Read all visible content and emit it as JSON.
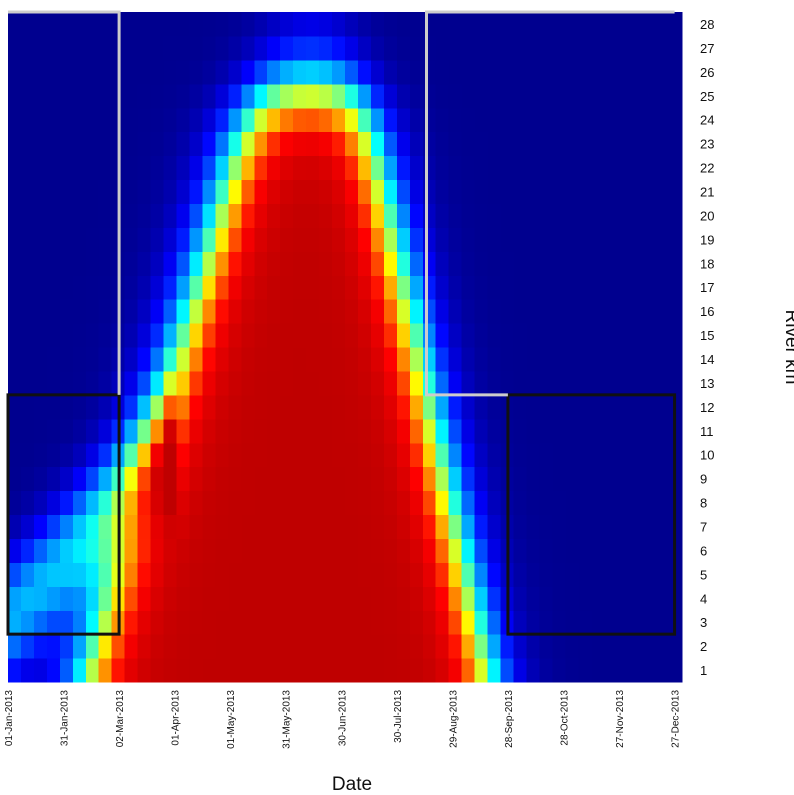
{
  "chart_data": {
    "type": "heatmap",
    "title": "",
    "xlabel": "Date",
    "ylabel": "River km",
    "x_ticks": [
      "01-Jan-2013",
      "31-Jan-2013",
      "02-Mar-2013",
      "01-Apr-2013",
      "01-May-2013",
      "31-May-2013",
      "30-Jun-2013",
      "30-Jul-2013",
      "29-Aug-2013",
      "28-Sep-2013",
      "28-Oct-2013",
      "27-Nov-2013",
      "27-Dec-2013"
    ],
    "y_ticks": [
      "1",
      "2",
      "3",
      "4",
      "5",
      "6",
      "7",
      "8",
      "9",
      "10",
      "11",
      "12",
      "13",
      "14",
      "15",
      "16",
      "17",
      "18",
      "19",
      "20",
      "21",
      "22",
      "23",
      "24",
      "25",
      "26",
      "27",
      "28"
    ],
    "x_range": [
      "01-Jan-2013",
      "31-Dec-2013"
    ],
    "y_range": [
      0.5,
      28.5
    ],
    "colormap": "jet",
    "colormap_colors": [
      "#00008f",
      "#0000ff",
      "#00ffff",
      "#ffff00",
      "#ff0000",
      "#bf0000"
    ],
    "color_scale": "relative 0-1 (no colorbar shown)",
    "legend": "none",
    "grid": false,
    "annotations": [
      {
        "type": "rectangle",
        "color": "#111111",
        "x": [
          "01-Jan-2013",
          "02-Mar-2013"
        ],
        "y": [
          2.5,
          12.5
        ]
      },
      {
        "type": "rectangle",
        "color": "#111111",
        "x": [
          "28-Sep-2013",
          "27-Dec-2013"
        ],
        "y": [
          2.5,
          12.5
        ]
      },
      {
        "type": "polyline",
        "color": "#cccccc",
        "points": [
          [
            "02-Mar-2013",
            12.5
          ],
          [
            "02-Mar-2013",
            28.5
          ],
          [
            "01-Jan-2013",
            28.5
          ]
        ]
      },
      {
        "type": "polyline",
        "color": "#cccccc",
        "points": [
          [
            "28-Sep-2013",
            12.5
          ],
          [
            "15-Aug-2013",
            12.5
          ],
          [
            "15-Aug-2013",
            28.5
          ],
          [
            "27-Dec-2013",
            28.5
          ]
        ]
      }
    ]
  }
}
